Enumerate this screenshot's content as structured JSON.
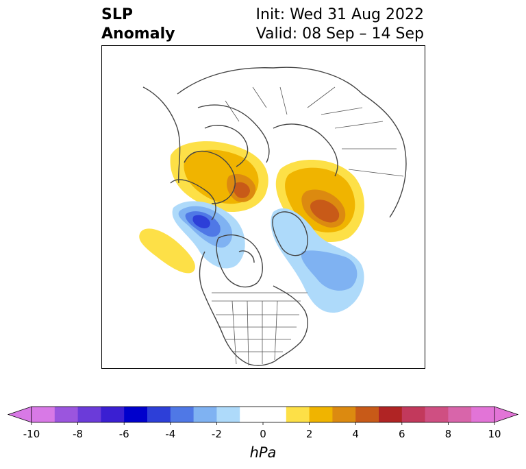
{
  "title": {
    "left_line1": "SLP",
    "left_line2": "Anomaly",
    "right_line1": "Init: Wed 31 Aug 2022",
    "right_line2": "Valid: 08 Sep – 14 Sep"
  },
  "map": {
    "projection": "polar stereographic, North Pole",
    "anomaly_centers": [
      {
        "region": "Alaska / Bering Sea",
        "sign": "positive",
        "peak_hpa": 6
      },
      {
        "region": "Eastern Siberia",
        "sign": "positive",
        "peak_hpa": 6
      },
      {
        "region": "Gulf of Alaska / NE Pacific",
        "sign": "negative",
        "peak_hpa": -6
      },
      {
        "region": "North Atlantic",
        "sign": "negative",
        "peak_hpa": -3
      },
      {
        "region": "Central North Pacific",
        "sign": "positive",
        "peak_hpa": 1
      }
    ]
  },
  "colorbar": {
    "unit": "hPa",
    "ticks": [
      "-10",
      "-8",
      "-6",
      "-4",
      "-2",
      "0",
      "2",
      "4",
      "6",
      "8",
      "10"
    ],
    "extend": "both",
    "colors": [
      "#d879e6",
      "#9b55de",
      "#6b3bd9",
      "#3a1fd2",
      "#0000cc",
      "#2d3fd8",
      "#4f78e6",
      "#7fb2f2",
      "#aedafa",
      "#ffffff",
      "#ffffff",
      "#fde047",
      "#f0b400",
      "#dc8a10",
      "#c85a18",
      "#b02424",
      "#c2395c",
      "#cf4f82",
      "#d865aa",
      "#e274d7"
    ]
  }
}
